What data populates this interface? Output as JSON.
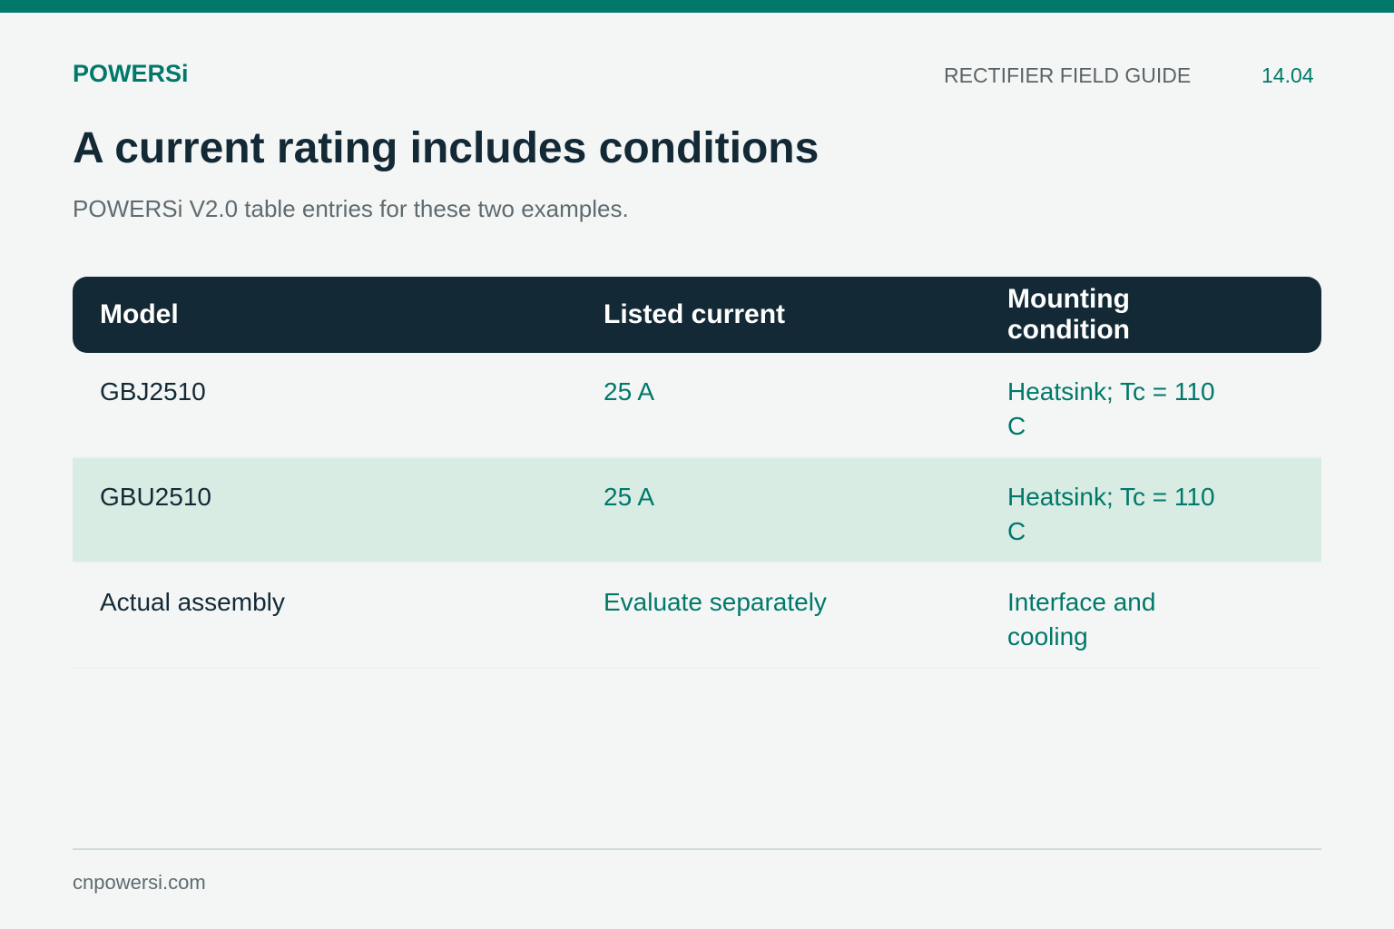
{
  "header": {
    "brand": "POWERSi",
    "section": "RECTIFIER FIELD GUIDE",
    "page": "14.04"
  },
  "title": "A current rating includes conditions",
  "subtitle": "POWERSi V2.0 table entries for these two examples.",
  "table": {
    "columns": [
      "Model",
      "Listed current",
      "Mounting condition"
    ],
    "rows": [
      [
        "GBJ2510",
        "25 A",
        "Heatsink; Tc = 110 C"
      ],
      [
        "GBU2510",
        "25 A",
        "Heatsink; Tc = 110 C"
      ],
      [
        "Actual assembly",
        "Evaluate separately",
        "Interface and cooling"
      ]
    ]
  },
  "footer": "cnpowersi.com"
}
